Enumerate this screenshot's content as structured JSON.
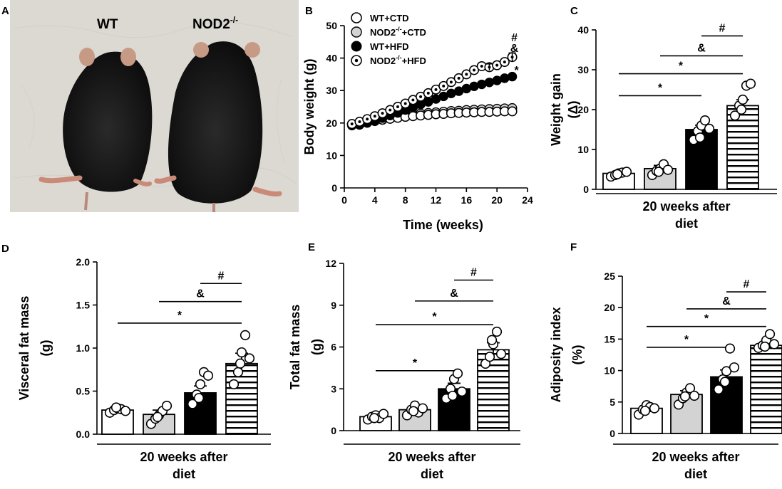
{
  "photo": {
    "panel_label": "A",
    "label_left": "WT",
    "label_right": "NOD2",
    "label_right_sup": "-/-"
  },
  "colors": {
    "photo_background": "#dcd8d2",
    "mouse_fur": "#141414",
    "ear": "#c79a86",
    "group_wt_ctd": "#ffffff",
    "group_nod2_ctd": "#d3d3d3",
    "group_wt_hfd": "#000000",
    "group_nod2_hfd": "#ffffff"
  },
  "chart_data": [
    {
      "panel": "B",
      "type": "line",
      "ylabel": "Body weight (g)",
      "xlabel": "Time (weeks)",
      "xlim": [
        0,
        24
      ],
      "ylim": [
        0,
        50
      ],
      "xticks": [
        "0",
        "4",
        "8",
        "12",
        "16",
        "20",
        "24"
      ],
      "yticks": [
        "0",
        "10",
        "20",
        "30",
        "40",
        "50"
      ],
      "x": [
        1,
        2,
        3,
        4,
        5,
        6,
        7,
        8,
        9,
        10,
        11,
        12,
        13,
        14,
        15,
        16,
        17,
        18,
        19,
        20,
        21,
        22
      ],
      "series": [
        {
          "name": "WT+CTD",
          "name_base": "WT+CTD",
          "name_sup": "",
          "name_tail": "",
          "marker": "open",
          "values": [
            19.6,
            19.8,
            20.2,
            20.6,
            21.0,
            21.3,
            21.6,
            21.9,
            22.1,
            22.3,
            22.5,
            22.7,
            22.8,
            23.0,
            23.1,
            23.2,
            23.3,
            23.4,
            23.4,
            23.5,
            23.6,
            23.6
          ]
        },
        {
          "name": "NOD2-/-+CTD",
          "name_base": "NOD2",
          "name_sup": "-/-",
          "name_tail": "+CTD",
          "marker": "gray",
          "values": [
            19.5,
            19.8,
            20.3,
            20.8,
            21.2,
            21.6,
            22.0,
            22.3,
            22.6,
            22.9,
            23.1,
            23.3,
            23.5,
            23.7,
            23.8,
            24.0,
            24.1,
            24.2,
            24.3,
            24.4,
            24.5,
            24.6
          ]
        },
        {
          "name": "WT+HFD",
          "name_base": "WT+HFD",
          "name_sup": "",
          "name_tail": "",
          "marker": "filled",
          "values": [
            19.2,
            19.4,
            20.0,
            20.7,
            21.5,
            22.3,
            23.1,
            24.0,
            24.8,
            25.7,
            26.5,
            27.4,
            28.2,
            29.1,
            29.8,
            30.6,
            31.3,
            31.9,
            32.5,
            33.1,
            33.8,
            34.3
          ]
        },
        {
          "name": "NOD2-/-+HFD",
          "name_base": "NOD2",
          "name_sup": "-/-",
          "name_tail": "+HFD",
          "marker": "dot",
          "values": [
            19.7,
            20.4,
            21.2,
            22.1,
            23.0,
            24.0,
            25.0,
            26.0,
            27.1,
            28.1,
            29.2,
            30.3,
            31.4,
            32.6,
            33.8,
            35.0,
            36.3,
            37.5,
            37.2,
            37.8,
            38.8,
            40.3
          ]
        }
      ],
      "sem_marked": [
        {
          "series": "NOD2-/-+HFD",
          "x": 22,
          "err": 1.3
        },
        {
          "series": "NOD2-/-+HFD",
          "x": 19,
          "err": 1.0
        }
      ],
      "annotations": [
        "#",
        "&",
        "*"
      ]
    },
    {
      "panel": "C",
      "type": "bar",
      "ylabel": "Weight gain",
      "ylabel2": "(Δ)",
      "ylim": [
        0,
        40
      ],
      "yticks": [
        "0",
        "10",
        "20",
        "30",
        "40"
      ],
      "categories": [
        "WT+CTD",
        "NOD2-/-+CTD",
        "WT+HFD",
        "NOD2-/-+HFD"
      ],
      "values": [
        4.0,
        5.2,
        15.0,
        21.0
      ],
      "sem": [
        0.4,
        0.8,
        1.1,
        1.5
      ],
      "points": [
        [
          3.2,
          3.6,
          4.0,
          4.2,
          4.4,
          3.8
        ],
        [
          3.6,
          4.6,
          5.2,
          6.3,
          4.9,
          4.4
        ],
        [
          12.4,
          14.6,
          16.0,
          17.3,
          15.2,
          13.0
        ],
        [
          18.5,
          21.0,
          22.5,
          26.0,
          26.5,
          20.0
        ]
      ],
      "comparisons": [
        {
          "label": "#",
          "from": 2,
          "to": 3,
          "y": 38.5
        },
        {
          "label": "&",
          "from": 1,
          "to": 3,
          "y": 33.5
        },
        {
          "label": "*",
          "from": 0,
          "to": 3,
          "y": 29.0
        },
        {
          "label": "*",
          "from": 0,
          "to": 2,
          "y": 23.5
        }
      ],
      "footer_line1": "20 weeks after",
      "footer_line2": "diet"
    },
    {
      "panel": "D",
      "type": "bar",
      "ylabel": "Visceral fat mass",
      "ylabel2": "(g)",
      "ylim": [
        0,
        2.0
      ],
      "yticks": [
        "0.0",
        "0.5",
        "1.0",
        "1.5",
        "2.0"
      ],
      "categories": [
        "WT+CTD",
        "NOD2-/-+CTD",
        "WT+HFD",
        "NOD2-/-+HFD"
      ],
      "values": [
        0.28,
        0.23,
        0.48,
        0.82
      ],
      "sem": [
        0.03,
        0.05,
        0.08,
        0.12
      ],
      "points": [
        [
          0.25,
          0.28,
          0.3,
          0.29,
          0.27,
          0.31
        ],
        [
          0.12,
          0.18,
          0.22,
          0.27,
          0.33,
          0.2
        ],
        [
          0.35,
          0.46,
          0.58,
          0.72,
          0.68,
          0.42
        ],
        [
          0.58,
          0.72,
          0.95,
          1.15,
          0.88,
          0.82
        ]
      ],
      "comparisons": [
        {
          "label": "#",
          "from": 2,
          "to": 3,
          "y": 1.75
        },
        {
          "label": "&",
          "from": 1,
          "to": 3,
          "y": 1.54
        },
        {
          "label": "*",
          "from": 0,
          "to": 3,
          "y": 1.29
        }
      ],
      "footer_line1": "20 weeks after",
      "footer_line2": "diet"
    },
    {
      "panel": "E",
      "type": "bar",
      "ylabel": "Total fat mass",
      "ylabel2": "(g)",
      "ylim": [
        0,
        12
      ],
      "yticks": [
        "0",
        "3",
        "6",
        "9",
        "12"
      ],
      "categories": [
        "WT+CTD",
        "NOD2-/-+CTD",
        "WT+HFD",
        "NOD2-/-+HFD"
      ],
      "values": [
        1.0,
        1.5,
        3.0,
        5.8
      ],
      "sem": [
        0.1,
        0.2,
        0.4,
        0.5
      ],
      "points": [
        [
          0.8,
          1.0,
          1.1,
          0.9,
          1.2,
          0.9
        ],
        [
          1.1,
          1.5,
          1.8,
          1.3,
          1.6,
          1.4
        ],
        [
          2.3,
          3.0,
          3.7,
          4.1,
          2.8,
          2.5
        ],
        [
          4.8,
          5.3,
          6.2,
          7.1,
          5.5,
          6.5
        ]
      ],
      "comparisons": [
        {
          "label": "#",
          "from": 2,
          "to": 3,
          "y": 10.8
        },
        {
          "label": "&",
          "from": 1,
          "to": 3,
          "y": 9.3
        },
        {
          "label": "*",
          "from": 0,
          "to": 3,
          "y": 7.6
        },
        {
          "label": "*",
          "from": 0,
          "to": 2,
          "y": 4.3
        }
      ],
      "footer_line1": "20 weeks after",
      "footer_line2": "diet"
    },
    {
      "panel": "F",
      "type": "bar",
      "ylabel": "Adiposity index",
      "ylabel2": "(%)",
      "ylim": [
        0,
        25
      ],
      "yticks": [
        "0",
        "5",
        "10",
        "15",
        "20",
        "25"
      ],
      "categories": [
        "WT+CTD",
        "NOD2-/-+CTD",
        "WT+HFD",
        "NOD2-/-+HFD"
      ],
      "values": [
        4.0,
        6.2,
        9.0,
        14.0
      ],
      "sem": [
        0.4,
        0.6,
        1.1,
        0.5
      ],
      "points": [
        [
          3.0,
          3.8,
          4.5,
          4.2,
          4.0,
          3.6
        ],
        [
          4.6,
          5.6,
          6.5,
          7.2,
          6.0,
          5.9
        ],
        [
          7.0,
          8.6,
          9.9,
          13.5,
          10.5,
          8.2
        ],
        [
          13.6,
          14.0,
          14.8,
          15.8,
          14.2,
          13.8
        ]
      ],
      "comparisons": [
        {
          "label": "#",
          "from": 2,
          "to": 3,
          "y": 22.5
        },
        {
          "label": "&",
          "from": 1,
          "to": 3,
          "y": 19.8
        },
        {
          "label": "*",
          "from": 0,
          "to": 3,
          "y": 17.0
        },
        {
          "label": "*",
          "from": 0,
          "to": 2,
          "y": 13.7
        }
      ],
      "footer_line1": "20 weeks after",
      "footer_line2": "diet"
    }
  ]
}
